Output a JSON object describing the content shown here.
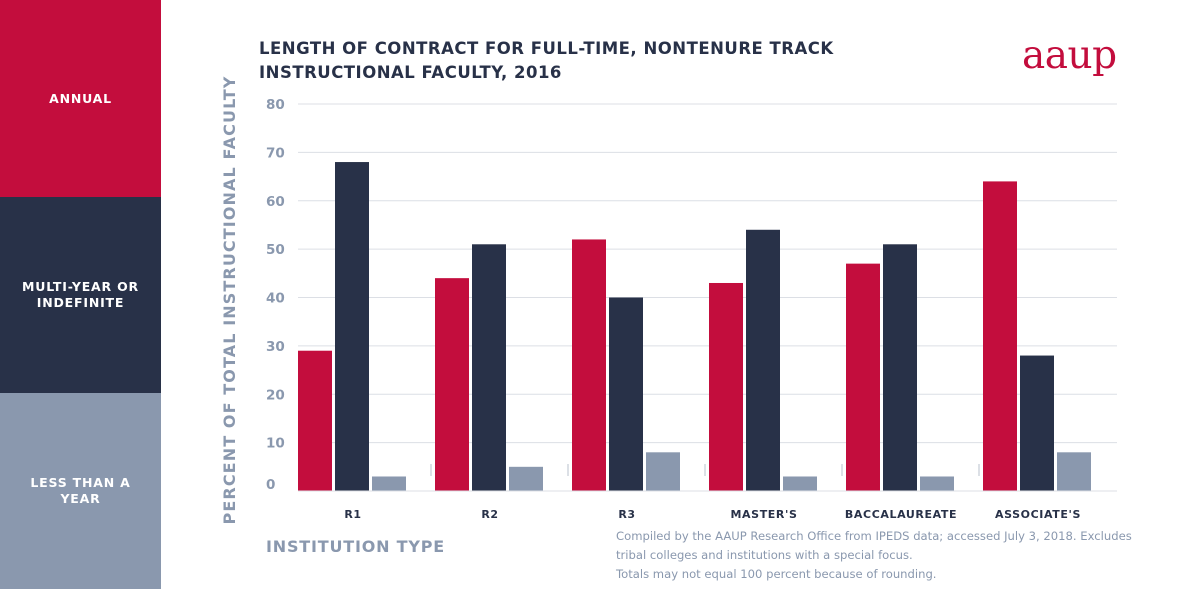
{
  "legend": {
    "annual": "ANNUAL",
    "multi_year": "MULTI-YEAR OR INDEFINITE",
    "less_than_year": "LESS THAN A YEAR"
  },
  "logo_text": "aaup",
  "colors": {
    "annual": "#c30d3d",
    "multi_year": "#283148",
    "less_than_year": "#8a98ae",
    "grid": "#dcdfe5"
  },
  "source_note": {
    "line1": "Compiled by the AAUP Research Office from IPEDS data; accessed July 3, 2018.  Excludes",
    "line2": "tribal colleges and institutions with a special focus.",
    "line3": "Totals may not equal 100 percent because of rounding."
  },
  "chart_data": {
    "type": "bar",
    "title": "LENGTH OF CONTRACT FOR FULL-TIME, NONTENURE TRACK INSTRUCTIONAL FACULTY, 2016",
    "xlabel": "INSTITUTION TYPE",
    "ylabel": "PERCENT OF TOTAL INSTRUCTIONAL FACULTY",
    "ylim": [
      0,
      80
    ],
    "yticks": [
      0,
      10,
      20,
      30,
      40,
      50,
      60,
      70,
      80
    ],
    "grid": true,
    "legend_placement": "left",
    "categories": [
      "R1",
      "R2",
      "R3",
      "MASTER'S",
      "BACCALAUREATE",
      "ASSOCIATE'S"
    ],
    "series": [
      {
        "name": "ANNUAL",
        "values": [
          29,
          44,
          52,
          43,
          47,
          64
        ]
      },
      {
        "name": "MULTI-YEAR OR INDEFINITE",
        "values": [
          68,
          51,
          40,
          54,
          51,
          28
        ]
      },
      {
        "name": "LESS THAN A YEAR",
        "values": [
          3,
          5,
          8,
          3,
          3,
          8
        ]
      }
    ]
  }
}
